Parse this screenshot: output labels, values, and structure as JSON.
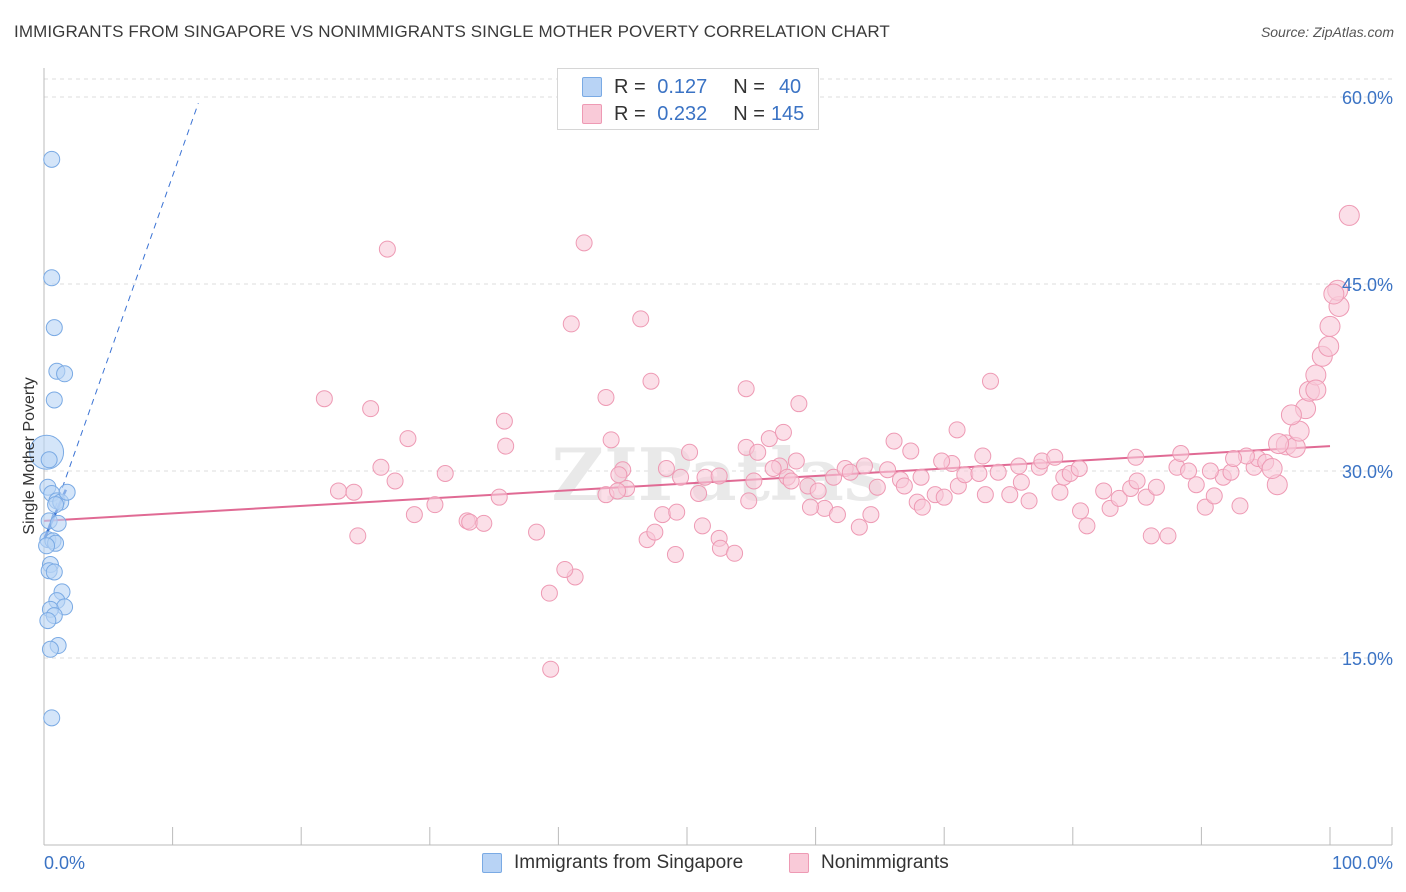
{
  "title": "IMMIGRANTS FROM SINGAPORE VS NONIMMIGRANTS SINGLE MOTHER POVERTY CORRELATION CHART",
  "source": "Source: ZipAtlas.com",
  "watermark": "ZIPatlas",
  "colors": {
    "blue_fill": "#b8d3f5",
    "blue_stroke": "#7aaae4",
    "blue_line": "#3b73d4",
    "pink_fill": "#f9cad8",
    "pink_stroke": "#ee9ab4",
    "pink_line": "#e06a94",
    "tick_text": "#3b73c4",
    "grid": "#dcdcdc"
  },
  "legend": {
    "series": [
      {
        "r_label": "R =",
        "r_value": "0.127",
        "n_label": "N =",
        "n_value": "40"
      },
      {
        "r_label": "R =",
        "r_value": "0.232",
        "n_label": "N =",
        "n_value": "145"
      }
    ]
  },
  "chart_data": {
    "type": "scatter",
    "title": "IMMIGRANTS FROM SINGAPORE VS NONIMMIGRANTS SINGLE MOTHER POVERTY CORRELATION CHART",
    "xlabel": "",
    "ylabel": "Single Mother Poverty",
    "xlim": [
      0,
      100
    ],
    "ylim": [
      0,
      60
    ],
    "x_tick_labels": [
      "0.0%",
      "100.0%"
    ],
    "y_ticks": [
      15,
      30,
      45,
      60
    ],
    "y_tick_labels": [
      "15.0%",
      "30.0%",
      "45.0%",
      "60.0%"
    ],
    "grid": true,
    "legend_position": "top-center",
    "series": [
      {
        "name": "Immigrants from Singapore",
        "color": "blue",
        "trend": {
          "x0": 0,
          "y0": 24.5,
          "x1": 1.7,
          "y1": 28.5,
          "dashed_x1": 12,
          "dashed_y1": 59.5
        },
        "points": [
          [
            0.2,
            31.5,
            3
          ],
          [
            0.6,
            55.0,
            1
          ],
          [
            0.6,
            45.5,
            1
          ],
          [
            0.8,
            41.5,
            1
          ],
          [
            1.0,
            38.0,
            1
          ],
          [
            1.6,
            37.8,
            1
          ],
          [
            0.8,
            35.7,
            1
          ],
          [
            0.3,
            28.7,
            1
          ],
          [
            0.6,
            28.2,
            1
          ],
          [
            1.0,
            27.6,
            1
          ],
          [
            1.3,
            27.5,
            1
          ],
          [
            0.4,
            26.0,
            1
          ],
          [
            1.1,
            25.8,
            1
          ],
          [
            0.3,
            24.5,
            1
          ],
          [
            0.7,
            24.4,
            1
          ],
          [
            0.9,
            24.2,
            1
          ],
          [
            0.5,
            22.5,
            1
          ],
          [
            0.4,
            22.0,
            1
          ],
          [
            0.8,
            21.9,
            1
          ],
          [
            1.4,
            20.3,
            1
          ],
          [
            1.0,
            19.6,
            1
          ],
          [
            1.6,
            19.1,
            1
          ],
          [
            0.5,
            18.9,
            1
          ],
          [
            0.8,
            18.4,
            1
          ],
          [
            0.3,
            18.0,
            1
          ],
          [
            1.1,
            16.0,
            1
          ],
          [
            0.5,
            15.7,
            1
          ],
          [
            0.6,
            10.2,
            1
          ],
          [
            1.8,
            28.3,
            1
          ],
          [
            0.2,
            24.0,
            1
          ],
          [
            0.9,
            27.3,
            1
          ],
          [
            0.4,
            30.9,
            1
          ]
        ]
      },
      {
        "name": "Nonimmigrants",
        "color": "pink",
        "trend": {
          "x0": 0,
          "y0": 26.0,
          "x1": 100,
          "y1": 32.0
        },
        "points": [
          [
            21.8,
            35.8,
            1
          ],
          [
            25.4,
            35.0,
            1
          ],
          [
            26.7,
            47.8,
            1
          ],
          [
            28.3,
            32.6,
            1
          ],
          [
            31.2,
            29.8,
            1
          ],
          [
            30.4,
            27.3,
            1
          ],
          [
            28.8,
            26.5,
            1
          ],
          [
            22.9,
            28.4,
            1
          ],
          [
            24.4,
            24.8,
            1
          ],
          [
            24.1,
            28.3,
            1
          ],
          [
            26.2,
            30.3,
            1
          ],
          [
            27.3,
            29.2,
            1
          ],
          [
            32.9,
            26.0,
            1
          ],
          [
            33.1,
            25.9,
            1
          ],
          [
            34.2,
            25.8,
            1
          ],
          [
            35.4,
            27.9,
            1
          ],
          [
            35.9,
            32.0,
            1
          ],
          [
            35.8,
            34.0,
            1
          ],
          [
            38.3,
            25.1,
            1
          ],
          [
            39.3,
            20.2,
            1
          ],
          [
            41.0,
            41.8,
            1
          ],
          [
            41.3,
            21.5,
            1
          ],
          [
            39.4,
            14.1,
            1
          ],
          [
            40.5,
            22.1,
            1
          ],
          [
            43.7,
            35.9,
            1
          ],
          [
            44.1,
            32.5,
            1
          ],
          [
            42.0,
            48.3,
            1
          ],
          [
            45.0,
            30.1,
            1
          ],
          [
            44.7,
            29.7,
            1
          ],
          [
            45.3,
            28.6,
            1
          ],
          [
            48.1,
            26.5,
            1
          ],
          [
            46.9,
            24.5,
            1
          ],
          [
            47.5,
            25.1,
            1
          ],
          [
            49.1,
            23.3,
            1
          ],
          [
            49.2,
            26.7,
            1
          ],
          [
            46.4,
            42.2,
            1
          ],
          [
            47.2,
            37.2,
            1
          ],
          [
            49.5,
            29.5,
            1
          ],
          [
            50.2,
            31.5,
            1
          ],
          [
            51.4,
            29.5,
            1
          ],
          [
            52.5,
            24.6,
            1
          ],
          [
            52.6,
            23.8,
            1
          ],
          [
            53.7,
            23.4,
            1
          ],
          [
            54.8,
            27.6,
            1
          ],
          [
            54.6,
            31.9,
            1
          ],
          [
            54.6,
            36.6,
            1
          ],
          [
            56.4,
            32.6,
            1
          ],
          [
            57.2,
            30.4,
            1
          ],
          [
            57.8,
            29.5,
            1
          ],
          [
            58.5,
            30.8,
            1
          ],
          [
            56.7,
            30.2,
            1
          ],
          [
            55.5,
            31.5,
            1
          ],
          [
            58.7,
            35.4,
            1
          ],
          [
            58.1,
            29.2,
            1
          ],
          [
            59.4,
            28.8,
            1
          ],
          [
            60.7,
            27.0,
            1
          ],
          [
            61.7,
            26.5,
            1
          ],
          [
            61.4,
            29.5,
            1
          ],
          [
            62.3,
            30.2,
            1
          ],
          [
            63.4,
            25.5,
            1
          ],
          [
            64.3,
            26.5,
            1
          ],
          [
            66.1,
            32.4,
            1
          ],
          [
            65.6,
            30.1,
            1
          ],
          [
            66.6,
            29.3,
            1
          ],
          [
            67.4,
            31.6,
            1
          ],
          [
            67.9,
            27.5,
            1
          ],
          [
            68.3,
            27.1,
            1
          ],
          [
            69.3,
            28.1,
            1
          ],
          [
            70.0,
            27.9,
            1
          ],
          [
            70.6,
            30.6,
            1
          ],
          [
            71.1,
            28.8,
            1
          ],
          [
            71.6,
            29.7,
            1
          ],
          [
            71.0,
            33.3,
            1
          ],
          [
            73.0,
            31.2,
            1
          ],
          [
            73.2,
            28.1,
            1
          ],
          [
            73.6,
            37.2,
            1
          ],
          [
            74.2,
            29.9,
            1
          ],
          [
            75.1,
            28.1,
            1
          ],
          [
            76.0,
            29.1,
            1
          ],
          [
            76.6,
            27.6,
            1
          ],
          [
            77.4,
            30.3,
            1
          ],
          [
            77.6,
            30.8,
            1
          ],
          [
            79.0,
            28.3,
            1
          ],
          [
            79.3,
            29.5,
            1
          ],
          [
            79.8,
            29.8,
            1
          ],
          [
            80.6,
            26.8,
            1
          ],
          [
            81.1,
            25.6,
            1
          ],
          [
            82.4,
            28.4,
            1
          ],
          [
            82.9,
            27.0,
            1
          ],
          [
            83.6,
            27.8,
            1
          ],
          [
            84.5,
            28.6,
            1
          ],
          [
            85.0,
            29.2,
            1
          ],
          [
            85.7,
            27.9,
            1
          ],
          [
            86.5,
            28.7,
            1
          ],
          [
            86.1,
            24.8,
            1
          ],
          [
            87.4,
            24.8,
            1
          ],
          [
            88.1,
            30.3,
            1
          ],
          [
            88.4,
            31.4,
            1
          ],
          [
            89.6,
            28.9,
            1
          ],
          [
            90.3,
            27.1,
            1
          ],
          [
            91.0,
            28.0,
            1
          ],
          [
            91.7,
            29.5,
            1
          ],
          [
            92.3,
            29.9,
            1
          ],
          [
            93.0,
            27.2,
            1
          ],
          [
            94.1,
            30.3,
            1
          ],
          [
            94.4,
            31.0,
            1
          ],
          [
            95.0,
            30.7,
            1
          ],
          [
            95.9,
            28.9,
            1
          ],
          [
            96.6,
            32.1,
            1
          ],
          [
            97.3,
            31.9,
            1
          ],
          [
            97.6,
            33.2,
            1
          ],
          [
            98.1,
            35.0,
            1
          ],
          [
            98.4,
            36.4,
            1
          ],
          [
            98.9,
            37.7,
            1
          ],
          [
            99.4,
            39.2,
            1
          ],
          [
            99.9,
            40.0,
            1
          ],
          [
            100.7,
            43.2,
            1
          ],
          [
            100.6,
            44.5,
            1
          ],
          [
            101.5,
            50.5,
            1
          ],
          [
            97.0,
            34.5,
            1
          ],
          [
            95.5,
            30.2,
            1
          ],
          [
            93.5,
            31.2,
            1
          ],
          [
            90.7,
            30.0,
            1
          ],
          [
            84.9,
            31.1,
            1
          ],
          [
            80.5,
            30.2,
            1
          ],
          [
            78.6,
            31.1,
            1
          ],
          [
            75.8,
            30.4,
            1
          ],
          [
            69.8,
            30.8,
            1
          ],
          [
            66.9,
            28.8,
            1
          ],
          [
            64.8,
            28.7,
            1
          ],
          [
            62.7,
            29.9,
            1
          ],
          [
            60.2,
            28.4,
            1
          ],
          [
            57.5,
            33.1,
            1
          ],
          [
            55.2,
            29.2,
            1
          ],
          [
            52.5,
            29.6,
            1
          ],
          [
            50.9,
            28.2,
            1
          ],
          [
            48.4,
            30.2,
            1
          ],
          [
            43.7,
            28.1,
            1
          ],
          [
            44.6,
            28.4,
            1
          ],
          [
            51.2,
            25.6,
            1
          ],
          [
            59.6,
            27.1,
            1
          ],
          [
            63.8,
            30.4,
            1
          ],
          [
            68.2,
            29.5,
            1
          ],
          [
            72.7,
            29.8,
            1
          ],
          [
            98.9,
            36.5,
            1
          ],
          [
            100.0,
            41.6,
            1
          ],
          [
            100.3,
            44.2,
            1
          ],
          [
            96.0,
            32.2,
            1
          ],
          [
            92.5,
            31.0,
            1
          ],
          [
            89.0,
            30.0,
            1
          ]
        ]
      }
    ]
  },
  "bottom_legend": [
    {
      "label": "Immigrants from Singapore"
    },
    {
      "label": "Nonimmigrants"
    }
  ]
}
